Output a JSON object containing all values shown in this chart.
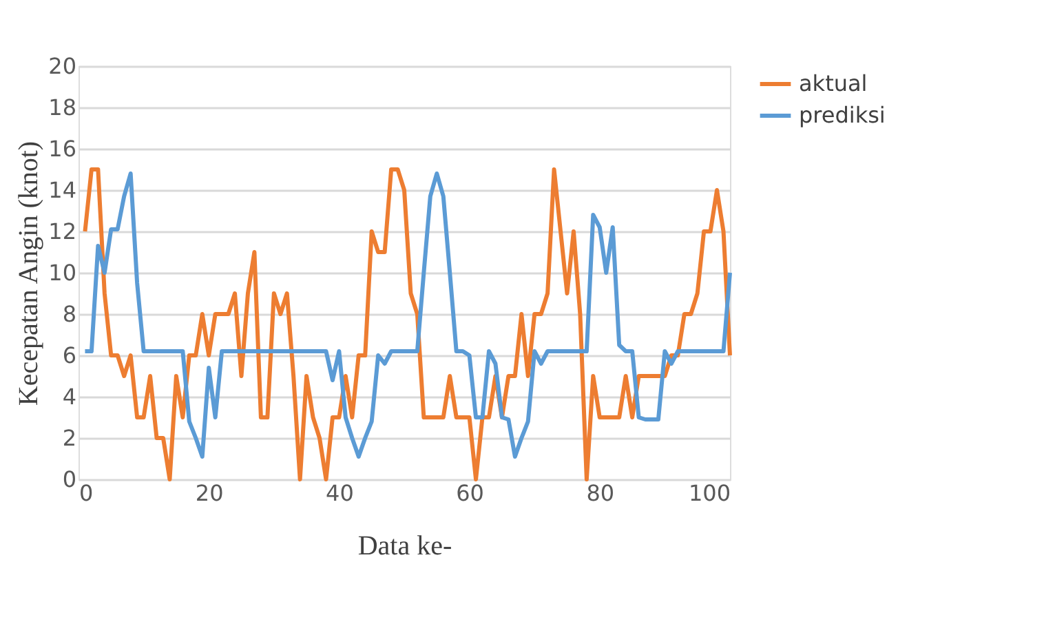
{
  "chart_data": {
    "type": "line",
    "xlabel": "Data ke-",
    "ylabel": "Kecepatan Angin (knot)",
    "x": [
      1,
      2,
      3,
      4,
      5,
      6,
      7,
      8,
      9,
      10,
      11,
      12,
      13,
      14,
      15,
      16,
      17,
      18,
      19,
      20,
      21,
      22,
      23,
      24,
      25,
      26,
      27,
      28,
      29,
      30,
      31,
      32,
      33,
      34,
      35,
      36,
      37,
      38,
      39,
      40,
      41,
      42,
      43,
      44,
      45,
      46,
      47,
      48,
      49,
      50,
      51,
      52,
      53,
      54,
      55,
      56,
      57,
      58,
      59,
      60,
      61,
      62,
      63,
      64,
      65,
      66,
      67,
      68,
      69,
      70,
      71,
      72,
      73,
      74,
      75,
      76,
      77,
      78,
      79,
      80,
      81,
      82,
      83,
      84,
      85,
      86,
      87,
      88,
      89,
      90,
      91,
      92,
      93,
      94,
      95,
      96,
      97,
      98,
      99,
      100
    ],
    "series": [
      {
        "name": "aktual",
        "color": "#ed7d31",
        "values": [
          12,
          15,
          15,
          9,
          6,
          6,
          5,
          6,
          3,
          3,
          5,
          2,
          2,
          0,
          5,
          3,
          6,
          6,
          8,
          6,
          8,
          8,
          8,
          9,
          5,
          9,
          11,
          3,
          3,
          9,
          8,
          9,
          5,
          0,
          5,
          3,
          2,
          0,
          3,
          3,
          5,
          3,
          6,
          6,
          12,
          11,
          11,
          15,
          15,
          14,
          9,
          8,
          3,
          3,
          3,
          3,
          5,
          3,
          3,
          3,
          0,
          3,
          3,
          5,
          3,
          5,
          5,
          8,
          5,
          8,
          8,
          9,
          15,
          12,
          9,
          12,
          8,
          0,
          5,
          3,
          3,
          3,
          3,
          5,
          3,
          5,
          5,
          5,
          5,
          5,
          6,
          6,
          8,
          8,
          9,
          12,
          12,
          14,
          12,
          6
        ]
      },
      {
        "name": "prediksi",
        "color": "#5b9bd5",
        "values": [
          6.2,
          6.2,
          11.3,
          10,
          12.1,
          12.1,
          13.7,
          14.8,
          9.5,
          6.2,
          6.2,
          6.2,
          6.2,
          6.2,
          6.2,
          6.2,
          2.8,
          2,
          1.1,
          5.4,
          3,
          6.2,
          6.2,
          6.2,
          6.2,
          6.2,
          6.2,
          6.2,
          6.2,
          6.2,
          6.2,
          6.2,
          6.2,
          6.2,
          6.2,
          6.2,
          6.2,
          6.2,
          4.8,
          6.2,
          3,
          2,
          1.1,
          2,
          2.8,
          6,
          5.6,
          6.2,
          6.2,
          6.2,
          6.2,
          6.2,
          10,
          13.7,
          14.8,
          13.7,
          10,
          6.2,
          6.2,
          6,
          3,
          3,
          6.2,
          5.6,
          3,
          2.9,
          1.1,
          2,
          2.8,
          6.2,
          5.6,
          6.2,
          6.2,
          6.2,
          6.2,
          6.2,
          6.2,
          6.2,
          12.8,
          12.2,
          10,
          12.2,
          6.5,
          6.2,
          6.2,
          3,
          2.9,
          2.9,
          2.9,
          6.2,
          5.6,
          6.2,
          6.2,
          6.2,
          6.2,
          6.2,
          6.2,
          6.2,
          6.2,
          10
        ]
      }
    ],
    "xlim": [
      0,
      100
    ],
    "xticks": [
      0,
      20,
      40,
      60,
      80,
      100
    ],
    "ylim": [
      0,
      20
    ],
    "yticks": [
      0,
      2,
      4,
      6,
      8,
      10,
      12,
      14,
      16,
      18,
      20
    ],
    "grid": "y",
    "legend": "right",
    "marker": "none",
    "line_style": "solid"
  }
}
